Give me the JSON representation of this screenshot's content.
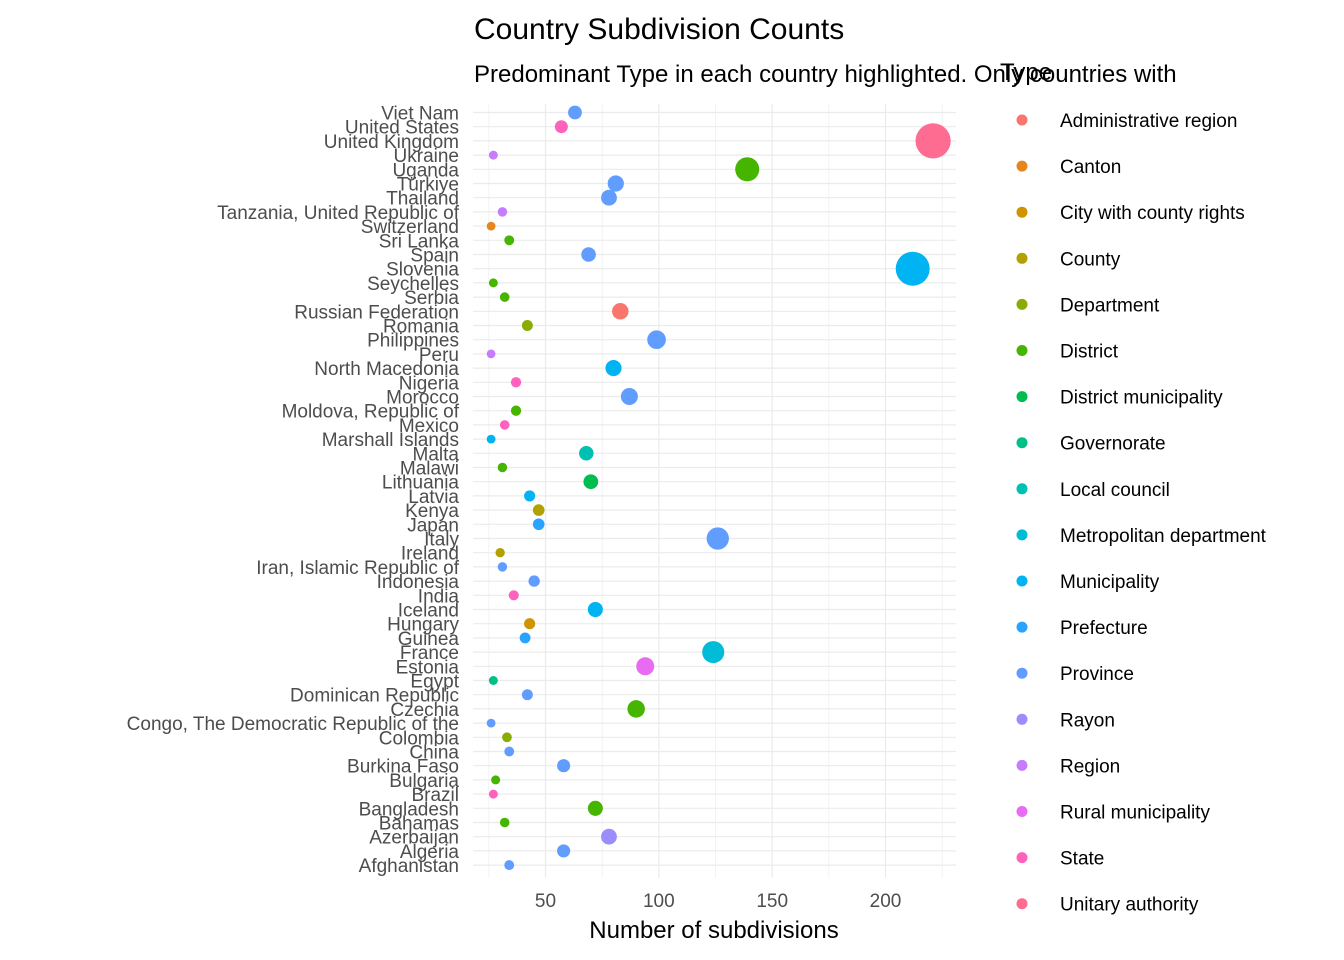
{
  "chart_data": {
    "type": "scatter",
    "title": "Country Subdivision Counts",
    "subtitle": "Predominant Type in each country highlighted. Only countries with",
    "xlabel": "Number of  subdivisions",
    "ylabel": "",
    "xlim": [
      20,
      232
    ],
    "xticks": [
      50,
      100,
      150,
      200
    ],
    "grid": true,
    "legend_title": "Type",
    "legend_position": "right",
    "legend": [
      {
        "label": "Administrative region",
        "color": "#F8766D"
      },
      {
        "label": "Canton",
        "color": "#E7851E"
      },
      {
        "label": "City with county rights",
        "color": "#D09400"
      },
      {
        "label": "County",
        "color": "#B2A100"
      },
      {
        "label": "Department",
        "color": "#89AC00"
      },
      {
        "label": "District",
        "color": "#45B500"
      },
      {
        "label": "District municipality",
        "color": "#00BC51"
      },
      {
        "label": "Governorate",
        "color": "#00C087"
      },
      {
        "label": "Local council",
        "color": "#00C0B2"
      },
      {
        "label": "Metropolitan department",
        "color": "#00BCD6"
      },
      {
        "label": "Municipality",
        "color": "#00B3F2"
      },
      {
        "label": "Prefecture",
        "color": "#29A3FF"
      },
      {
        "label": "Province",
        "color": "#619CFF"
      },
      {
        "label": "Rayon",
        "color": "#9C8DFF"
      },
      {
        "label": "Region",
        "color": "#C77CFF"
      },
      {
        "label": "Rural municipality",
        "color": "#E76BF3"
      },
      {
        "label": "State",
        "color": "#FF62BC"
      },
      {
        "label": "Unitary authority",
        "color": "#FF6C91"
      }
    ],
    "points": [
      {
        "country": "Viet Nam",
        "value": 63,
        "type": "Province"
      },
      {
        "country": "United States",
        "value": 57,
        "type": "State"
      },
      {
        "country": "United Kingdom",
        "value": 221,
        "type": "Unitary authority"
      },
      {
        "country": "Ukraine",
        "value": 27,
        "type": "Region"
      },
      {
        "country": "Uganda",
        "value": 139,
        "type": "District"
      },
      {
        "country": "Türkiye",
        "value": 81,
        "type": "Province"
      },
      {
        "country": "Thailand",
        "value": 78,
        "type": "Province"
      },
      {
        "country": "Tanzania, United Republic of",
        "value": 31,
        "type": "Region"
      },
      {
        "country": "Switzerland",
        "value": 26,
        "type": "Canton"
      },
      {
        "country": "Sri Lanka",
        "value": 34,
        "type": "District"
      },
      {
        "country": "Spain",
        "value": 69,
        "type": "Province"
      },
      {
        "country": "Slovenia",
        "value": 212,
        "type": "Municipality"
      },
      {
        "country": "Seychelles",
        "value": 27,
        "type": "District"
      },
      {
        "country": "Serbia",
        "value": 32,
        "type": "District"
      },
      {
        "country": "Russian Federation",
        "value": 83,
        "type": "Administrative region"
      },
      {
        "country": "Romania",
        "value": 42,
        "type": "Department"
      },
      {
        "country": "Philippines",
        "value": 99,
        "type": "Province"
      },
      {
        "country": "Peru",
        "value": 26,
        "type": "Region"
      },
      {
        "country": "North Macedonia",
        "value": 80,
        "type": "Municipality"
      },
      {
        "country": "Nigeria",
        "value": 37,
        "type": "State"
      },
      {
        "country": "Morocco",
        "value": 87,
        "type": "Province"
      },
      {
        "country": "Moldova, Republic of",
        "value": 37,
        "type": "District"
      },
      {
        "country": "Mexico",
        "value": 32,
        "type": "State"
      },
      {
        "country": "Marshall Islands",
        "value": 26,
        "type": "Municipality"
      },
      {
        "country": "Malta",
        "value": 68,
        "type": "Local council"
      },
      {
        "country": "Malawi",
        "value": 31,
        "type": "District"
      },
      {
        "country": "Lithuania",
        "value": 70,
        "type": "District municipality"
      },
      {
        "country": "Latvia",
        "value": 43,
        "type": "Municipality"
      },
      {
        "country": "Kenya",
        "value": 47,
        "type": "County"
      },
      {
        "country": "Japan",
        "value": 47,
        "type": "Prefecture"
      },
      {
        "country": "Italy",
        "value": 126,
        "type": "Province"
      },
      {
        "country": "Ireland",
        "value": 30,
        "type": "County"
      },
      {
        "country": "Iran, Islamic Republic of",
        "value": 31,
        "type": "Province"
      },
      {
        "country": "Indonesia",
        "value": 45,
        "type": "Province"
      },
      {
        "country": "India",
        "value": 36,
        "type": "State"
      },
      {
        "country": "Iceland",
        "value": 72,
        "type": "Municipality"
      },
      {
        "country": "Hungary",
        "value": 43,
        "type": "City with county rights"
      },
      {
        "country": "Guinea",
        "value": 41,
        "type": "Prefecture"
      },
      {
        "country": "France",
        "value": 124,
        "type": "Metropolitan department"
      },
      {
        "country": "Estonia",
        "value": 94,
        "type": "Rural municipality"
      },
      {
        "country": "Egypt",
        "value": 27,
        "type": "Governorate"
      },
      {
        "country": "Dominican Republic",
        "value": 42,
        "type": "Province"
      },
      {
        "country": "Czechia",
        "value": 90,
        "type": "District"
      },
      {
        "country": "Congo, The Democratic Republic of the",
        "value": 26,
        "type": "Province"
      },
      {
        "country": "Colombia",
        "value": 33,
        "type": "Department"
      },
      {
        "country": "China",
        "value": 34,
        "type": "Province"
      },
      {
        "country": "Burkina Faso",
        "value": 58,
        "type": "Province"
      },
      {
        "country": "Bulgaria",
        "value": 28,
        "type": "District"
      },
      {
        "country": "Brazil",
        "value": 27,
        "type": "State"
      },
      {
        "country": "Bangladesh",
        "value": 72,
        "type": "District"
      },
      {
        "country": "Bahamas",
        "value": 32,
        "type": "District"
      },
      {
        "country": "Azerbaijan",
        "value": 78,
        "type": "Rayon"
      },
      {
        "country": "Algeria",
        "value": 58,
        "type": "Province"
      },
      {
        "country": "Afghanistan",
        "value": 34,
        "type": "Province"
      }
    ]
  }
}
